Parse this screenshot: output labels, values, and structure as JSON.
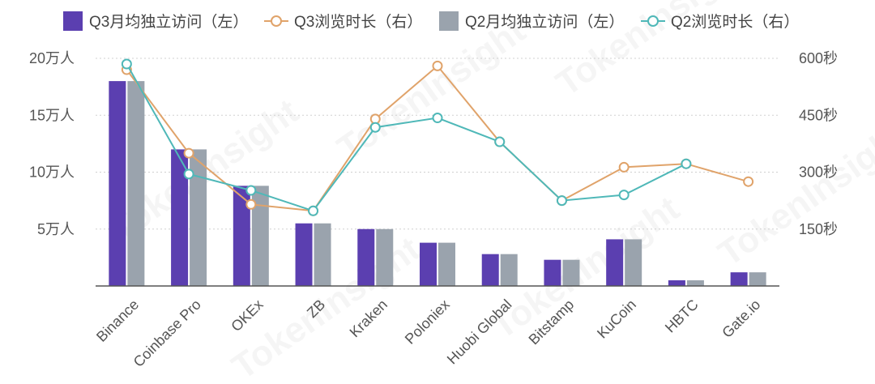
{
  "legend": {
    "q3_visitors": "Q3月均独立访问（左）",
    "q3_duration": "Q3浏览时长（右）",
    "q2_visitors": "Q2月均独立访问（左）",
    "q2_duration": "Q2浏览时长（右）"
  },
  "watermark": "TokenInsight",
  "colors": {
    "q3_bar": "#5b3fb0",
    "q2_bar": "#9aa3ad",
    "q3_line": "#e0a36a",
    "q2_line": "#4fb8b8",
    "grid": "#d0d0d0",
    "axis": "#555555"
  },
  "chart_data": {
    "type": "bar",
    "categories": [
      "Binance",
      "Coinbase Pro",
      "OKEx",
      "ZB",
      "Kraken",
      "Poloniex",
      "Huobi Global",
      "Bitstamp",
      "KuCoin",
      "HBTC",
      "Gate.io"
    ],
    "left_axis": {
      "ylim": [
        0,
        20
      ],
      "unit": "万人",
      "ticks": [
        5,
        10,
        15,
        20
      ],
      "tick_labels": [
        "5万人",
        "10万人",
        "15万人",
        "20万人"
      ]
    },
    "right_axis": {
      "ylim": [
        0,
        600
      ],
      "unit": "秒",
      "ticks": [
        150,
        300,
        450,
        600
      ],
      "tick_labels": [
        "150秒",
        "300秒",
        "450秒",
        "600秒"
      ]
    },
    "series": [
      {
        "name": "Q3月均独立访问（左）",
        "kind": "bar",
        "axis": "left",
        "values": [
          18.0,
          12.0,
          8.8,
          5.5,
          5.0,
          3.8,
          2.8,
          2.3,
          4.1,
          0.5,
          1.2
        ]
      },
      {
        "name": "Q2月均独立访问（左）",
        "kind": "bar",
        "axis": "left",
        "values": [
          18.0,
          12.0,
          8.8,
          5.5,
          5.0,
          3.8,
          2.8,
          2.3,
          4.1,
          0.5,
          1.2
        ]
      },
      {
        "name": "Q3浏览时长（右）",
        "kind": "line",
        "axis": "right",
        "values": [
          570,
          350,
          215,
          198,
          440,
          580,
          380,
          225,
          313,
          322,
          275
        ]
      },
      {
        "name": "Q2浏览时长（右）",
        "kind": "line",
        "axis": "right",
        "values": [
          585,
          295,
          252,
          198,
          418,
          443,
          380,
          225,
          240,
          322,
          null
        ]
      }
    ],
    "grid": true,
    "legend_position": "top"
  }
}
